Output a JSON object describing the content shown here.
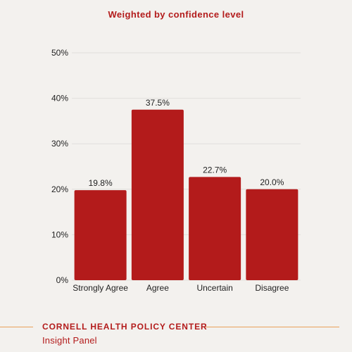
{
  "colors": {
    "background": "#f3f1ee",
    "bar": "#b31b1b",
    "title": "#b31b1b",
    "gridline": "#e2dfdb",
    "axis_text": "#222222",
    "footer_rule": "#e8a05a"
  },
  "footer": {
    "organization": "CORNELL HEALTH POLICY CENTER",
    "panel": "Insight Panel"
  },
  "chart_data": {
    "type": "bar",
    "title": "Weighted by confidence level",
    "categories": [
      "Strongly Agree",
      "Agree",
      "Uncertain",
      "Disagree"
    ],
    "values": [
      19.8,
      37.5,
      22.7,
      20.0
    ],
    "value_labels": [
      "19.8%",
      "37.5%",
      "22.7%",
      "20.0%"
    ],
    "ylim": [
      0,
      50
    ],
    "yticks": [
      0,
      10,
      20,
      30,
      40,
      50
    ],
    "ytick_labels": [
      "0%",
      "10%",
      "20%",
      "30%",
      "40%",
      "50%"
    ],
    "xlabel": "",
    "ylabel": "",
    "grid": true,
    "legend": "none"
  }
}
